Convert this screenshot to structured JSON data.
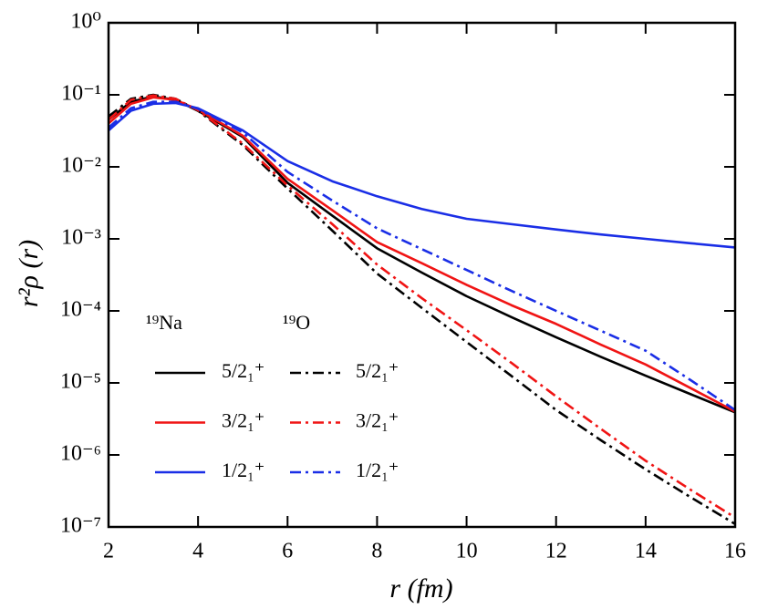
{
  "chart_data": {
    "type": "line",
    "x_label": "r (fm)",
    "y_label": "r²ρ (r)",
    "log_y": true,
    "xlim": [
      2,
      16
    ],
    "xticks": [
      2,
      4,
      6,
      8,
      10,
      12,
      14,
      16
    ],
    "ylim": [
      1e-07,
      1
    ],
    "yticks": [
      {
        "value": 1,
        "label": "10⁰"
      },
      {
        "value": 0.1,
        "label": "10⁻¹"
      },
      {
        "value": 0.01,
        "label": "10⁻²"
      },
      {
        "value": 0.001,
        "label": "10⁻³"
      },
      {
        "value": 0.0001,
        "label": "10⁻⁴"
      },
      {
        "value": 1e-05,
        "label": "10⁻⁵"
      },
      {
        "value": 1e-06,
        "label": "10⁻⁶"
      },
      {
        "value": 1e-07,
        "label": "10⁻⁷"
      }
    ],
    "legend_groups": [
      "¹⁹Na",
      "¹⁹O"
    ],
    "x": [
      2,
      2.5,
      3,
      3.5,
      4,
      5,
      6,
      7,
      8,
      9,
      10,
      11,
      12,
      13,
      14,
      15,
      16
    ],
    "series": [
      {
        "name": "5/2₁⁺",
        "color": "#000000",
        "linestyle": "solid",
        "values": [
          0.045,
          0.08,
          0.095,
          0.085,
          0.06,
          0.026,
          0.006,
          0.0021,
          0.00074,
          0.00034,
          0.00016,
          8.2e-05,
          4.3e-05,
          2.3e-05,
          1.26e-05,
          7e-06,
          3.9e-06
        ]
      },
      {
        "name": "3/2₁⁺",
        "color": "#f01414",
        "linestyle": "solid",
        "values": [
          0.04,
          0.075,
          0.092,
          0.085,
          0.062,
          0.027,
          0.0068,
          0.0025,
          0.0009,
          0.00046,
          0.00023,
          0.00012,
          6.6e-05,
          3.4e-05,
          1.8e-05,
          8.5e-06,
          4e-06
        ]
      },
      {
        "name": "1/2₁⁺",
        "color": "#1a2ee6",
        "linestyle": "solid",
        "values": [
          0.032,
          0.06,
          0.075,
          0.077,
          0.065,
          0.032,
          0.012,
          0.0063,
          0.0039,
          0.0026,
          0.0019,
          0.0016,
          0.00135,
          0.00115,
          0.001,
          0.00087,
          0.00076
        ]
      },
      {
        "name": "5/2₁⁺",
        "color": "#000000",
        "linestyle": "dashdot",
        "values": [
          0.05,
          0.088,
          0.1,
          0.088,
          0.06,
          0.02,
          0.005,
          0.0013,
          0.00033,
          0.00011,
          3.7e-05,
          1.25e-05,
          4.2e-06,
          1.6e-06,
          6.3e-07,
          2.6e-07,
          1.1e-07
        ]
      },
      {
        "name": "3/2₁⁺",
        "color": "#f01414",
        "linestyle": "dashdot",
        "values": [
          0.045,
          0.085,
          0.098,
          0.088,
          0.061,
          0.021,
          0.0055,
          0.0016,
          0.00044,
          0.00015,
          5.4e-05,
          1.9e-05,
          6.5e-06,
          2.3e-06,
          8.3e-07,
          3.3e-07,
          1.35e-07
        ]
      },
      {
        "name": "1/2₁⁺",
        "color": "#1a2ee6",
        "linestyle": "dashdot",
        "values": [
          0.035,
          0.065,
          0.08,
          0.08,
          0.064,
          0.03,
          0.0085,
          0.0034,
          0.0014,
          0.00072,
          0.00037,
          0.00019,
          0.0001,
          5.3e-05,
          2.8e-05,
          1.1e-05,
          4.2e-06
        ]
      }
    ]
  }
}
